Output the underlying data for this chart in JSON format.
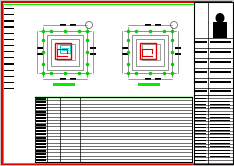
{
  "bg_color": "#c8c8c8",
  "drawing_bg": "#ffffff",
  "outer_border_color": "#dd0000",
  "green": "#00cc00",
  "bright_green": "#00ee00",
  "red": "#dd0000",
  "cyan": "#00cccc",
  "black": "#000000",
  "gray": "#909090",
  "dark_gray": "#505050",
  "mid_gray": "#b0b0b0",
  "fig_width": 2.34,
  "fig_height": 1.66,
  "dpi": 100
}
